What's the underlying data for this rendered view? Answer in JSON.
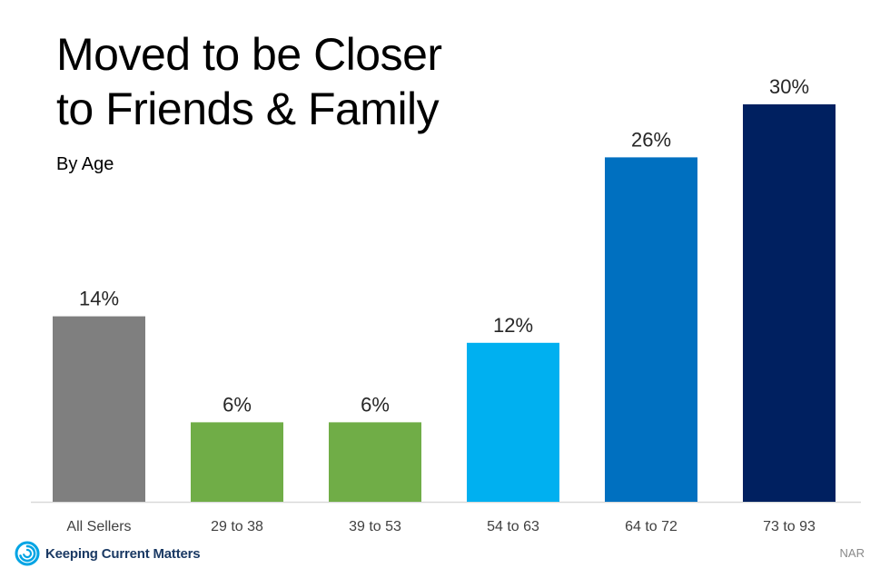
{
  "chart_data": {
    "type": "bar",
    "title_lines": [
      "Moved to be Closer",
      "to Friends & Family"
    ],
    "subtitle": "By Age",
    "categories": [
      "All Sellers",
      "29 to 38",
      "39 to 53",
      "54 to 63",
      "64 to 72",
      "73 to 93"
    ],
    "values": [
      14,
      6,
      6,
      12,
      26,
      30
    ],
    "value_labels": [
      "14%",
      "6%",
      "6%",
      "12%",
      "26%",
      "30%"
    ],
    "colors": [
      "#7f7f7f",
      "#70ad47",
      "#70ad47",
      "#00b0f0",
      "#0070c0",
      "#002060"
    ],
    "ylim": [
      0,
      30
    ],
    "grid": false,
    "legend": "none"
  },
  "branding": {
    "logo_text": "Keeping Current Matters",
    "logo_icon": "spiral-logo-icon",
    "logo_color": "#1b3a64",
    "logo_accent": "#00a4e4"
  },
  "source": "NAR"
}
